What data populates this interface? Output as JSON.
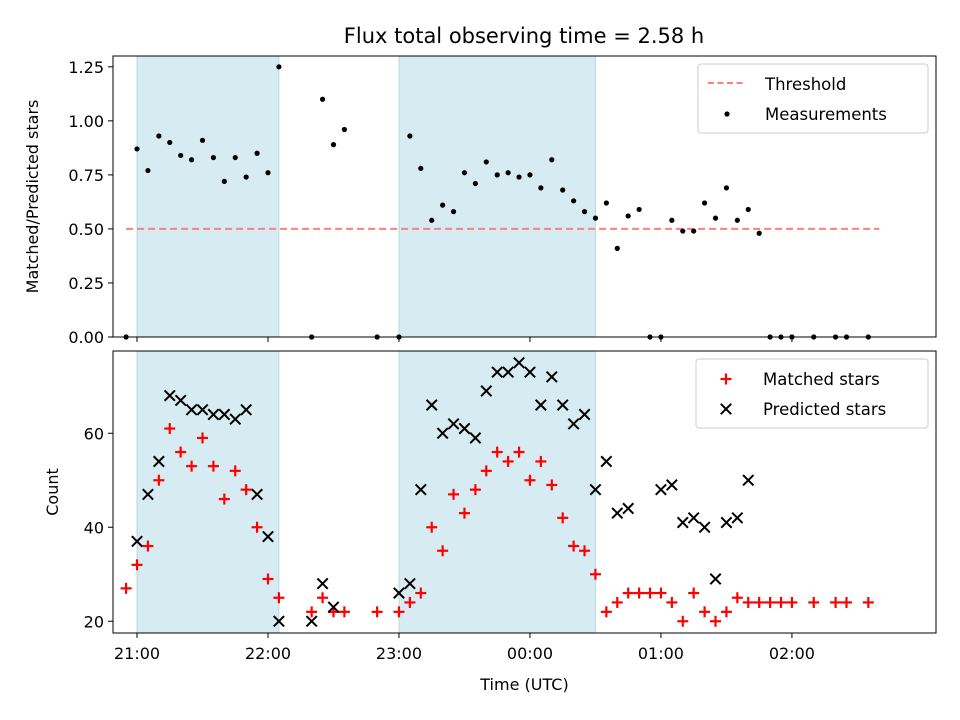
{
  "chart_data": [
    {
      "type": "scatter",
      "title": "Flux total observing time = 2.58 h",
      "xlabel": "",
      "ylabel": "Matched/Predicted stars",
      "xlim": [
        "20:49",
        "03:06"
      ],
      "ylim": [
        0,
        1.3
      ],
      "yticks": [
        0.0,
        0.25,
        0.5,
        0.75,
        1.0,
        1.25
      ],
      "ytick_labels": [
        "0.00",
        "0.25",
        "0.50",
        "0.75",
        "1.00",
        "1.25"
      ],
      "legend_position": "upper right",
      "shaded_intervals": [
        [
          "21:00",
          "22:05"
        ],
        [
          "23:00",
          "00:30"
        ]
      ],
      "threshold": {
        "name": "Threshold",
        "y": 0.5,
        "x_range": [
          "20:55",
          "02:40"
        ],
        "color": "#ff7f7f",
        "style": "dashed"
      },
      "series": [
        {
          "name": "Measurements",
          "color": "#000000",
          "marker": "dot",
          "x": [
            "20:55",
            "21:00",
            "21:05",
            "21:10",
            "21:15",
            "21:20",
            "21:25",
            "21:30",
            "21:35",
            "21:40",
            "21:45",
            "21:50",
            "21:55",
            "22:00",
            "22:05",
            "22:20",
            "22:25",
            "22:30",
            "22:35",
            "22:50",
            "23:00",
            "23:05",
            "23:10",
            "23:15",
            "23:20",
            "23:25",
            "23:30",
            "23:35",
            "23:40",
            "23:45",
            "23:50",
            "23:55",
            "00:00",
            "00:05",
            "00:10",
            "00:15",
            "00:20",
            "00:25",
            "00:30",
            "00:35",
            "00:40",
            "00:45",
            "00:50",
            "00:55",
            "01:00",
            "01:05",
            "01:10",
            "01:15",
            "01:20",
            "01:25",
            "01:30",
            "01:35",
            "01:40",
            "01:45",
            "01:50",
            "01:55",
            "02:00",
            "02:10",
            "02:20",
            "02:25",
            "02:35"
          ],
          "y": [
            0.0,
            0.87,
            0.77,
            0.93,
            0.9,
            0.84,
            0.82,
            0.91,
            0.83,
            0.72,
            0.83,
            0.74,
            0.85,
            0.76,
            1.25,
            0.0,
            1.1,
            0.89,
            0.96,
            0.0,
            0.0,
            0.93,
            0.78,
            0.54,
            0.61,
            0.58,
            0.76,
            0.71,
            0.81,
            0.75,
            0.76,
            0.74,
            0.75,
            0.69,
            0.82,
            0.68,
            0.63,
            0.58,
            0.55,
            0.62,
            0.41,
            0.56,
            0.59,
            0.0,
            0.0,
            0.54,
            0.49,
            0.49,
            0.62,
            0.55,
            0.69,
            0.54,
            0.59,
            0.48,
            0.0,
            0.0,
            0.0,
            0.0,
            0.0,
            0.0,
            0.0
          ]
        }
      ]
    },
    {
      "type": "scatter",
      "title": "",
      "xlabel": "Time (UTC)",
      "ylabel": "Count",
      "xlim": [
        "20:49",
        "03:06"
      ],
      "ylim": [
        17.5,
        77.5
      ],
      "xticks": [
        "21:00",
        "22:00",
        "23:00",
        "00:00",
        "01:00",
        "02:00"
      ],
      "yticks": [
        20,
        40,
        60
      ],
      "legend_position": "upper right",
      "shaded_intervals": [
        [
          "21:00",
          "22:05"
        ],
        [
          "23:00",
          "00:30"
        ]
      ],
      "series": [
        {
          "name": "Matched stars",
          "color": "#ff0000",
          "marker": "plus",
          "x": [
            "20:55",
            "21:00",
            "21:05",
            "21:10",
            "21:15",
            "21:20",
            "21:25",
            "21:30",
            "21:35",
            "21:40",
            "21:45",
            "21:50",
            "21:55",
            "22:00",
            "22:05",
            "22:20",
            "22:25",
            "22:30",
            "22:35",
            "22:50",
            "23:00",
            "23:05",
            "23:10",
            "23:15",
            "23:20",
            "23:25",
            "23:30",
            "23:35",
            "23:40",
            "23:45",
            "23:50",
            "23:55",
            "00:00",
            "00:05",
            "00:10",
            "00:15",
            "00:20",
            "00:25",
            "00:30",
            "00:35",
            "00:40",
            "00:45",
            "00:50",
            "00:55",
            "01:00",
            "01:05",
            "01:10",
            "01:15",
            "01:20",
            "01:25",
            "01:30",
            "01:35",
            "01:40",
            "01:45",
            "01:50",
            "01:55",
            "02:00",
            "02:10",
            "02:20",
            "02:25",
            "02:35"
          ],
          "y": [
            27,
            32,
            36,
            50,
            61,
            56,
            53,
            59,
            53,
            46,
            52,
            48,
            40,
            29,
            25,
            22,
            25,
            22,
            22,
            22,
            22,
            24,
            26,
            40,
            35,
            47,
            43,
            48,
            52,
            56,
            54,
            56,
            50,
            54,
            49,
            42,
            36,
            35,
            30,
            22,
            24,
            26,
            26,
            26,
            26,
            24,
            20,
            26,
            22,
            20,
            22,
            25,
            24,
            24,
            24,
            24,
            24,
            24,
            24,
            24,
            24
          ]
        },
        {
          "name": "Predicted stars",
          "color": "#000000",
          "marker": "x",
          "x": [
            "21:00",
            "21:05",
            "21:10",
            "21:15",
            "21:20",
            "21:25",
            "21:30",
            "21:35",
            "21:40",
            "21:45",
            "21:50",
            "21:55",
            "22:00",
            "22:05",
            "22:20",
            "22:25",
            "22:30",
            "23:00",
            "23:05",
            "23:10",
            "23:15",
            "23:20",
            "23:25",
            "23:30",
            "23:35",
            "23:40",
            "23:45",
            "23:50",
            "23:55",
            "00:00",
            "00:05",
            "00:10",
            "00:15",
            "00:20",
            "00:25",
            "00:30",
            "00:35",
            "00:40",
            "00:45",
            "01:00",
            "01:05",
            "01:10",
            "01:15",
            "01:20",
            "01:25",
            "01:30",
            "01:35",
            "01:40"
          ],
          "y": [
            37,
            47,
            54,
            68,
            67,
            65,
            65,
            64,
            64,
            63,
            65,
            47,
            38,
            20,
            20,
            28,
            23,
            26,
            28,
            48,
            66,
            60,
            62,
            61,
            59,
            69,
            73,
            73,
            75,
            73,
            66,
            72,
            66,
            62,
            64,
            48,
            54,
            43,
            44,
            48,
            49,
            41,
            42,
            40,
            29,
            41,
            42,
            50
          ]
        }
      ]
    }
  ]
}
